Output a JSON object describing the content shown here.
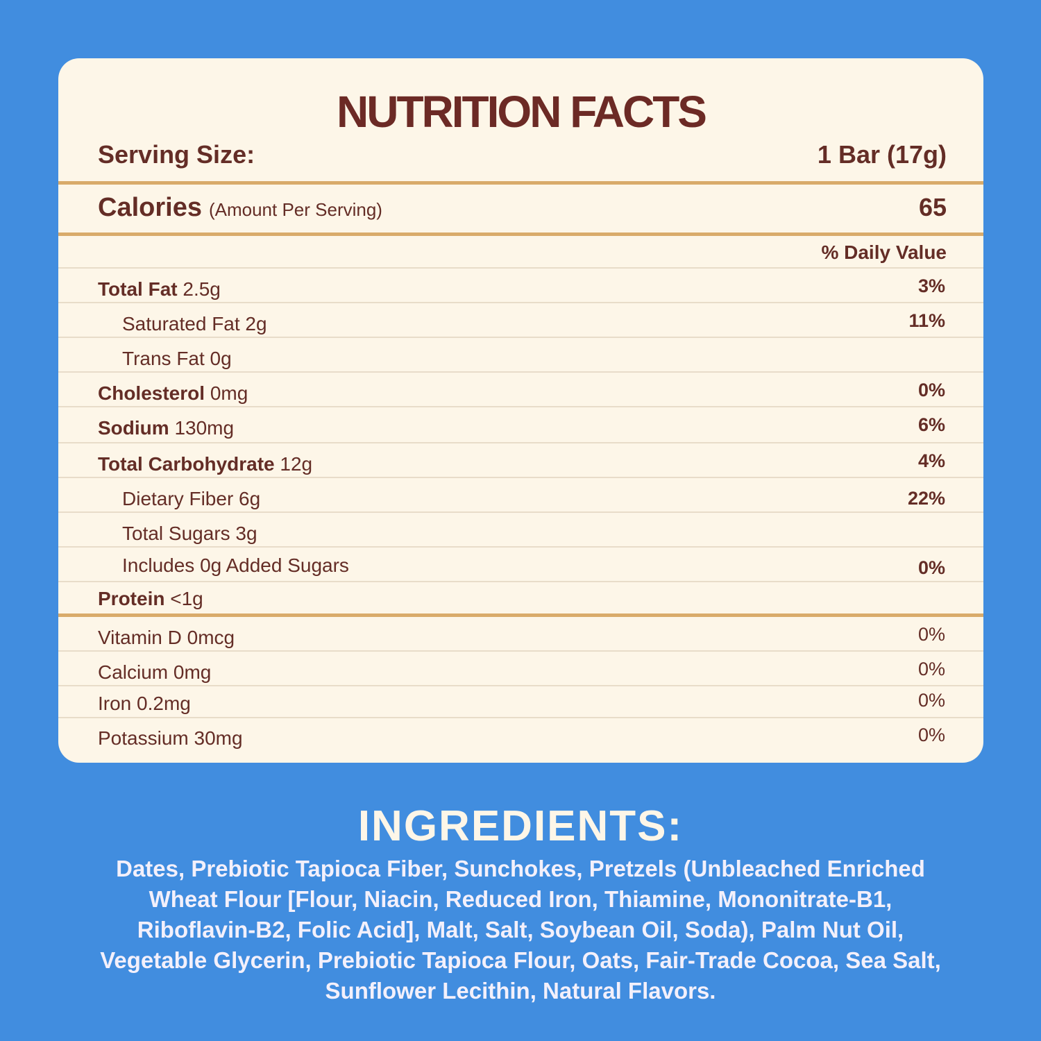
{
  "label": {
    "title": "NUTRITION FACTS",
    "serving_size_label": "Serving Size:",
    "serving_size_value": "1 Bar (17g)",
    "calories_label": "Calories",
    "calories_note": "(Amount Per Serving)",
    "calories_value": "65",
    "daily_value_header": "% Daily Value",
    "nutrients": [
      {
        "name": "Total Fat",
        "amount": "2.5g",
        "dv": "3%"
      },
      {
        "name": "Saturated Fat 2g",
        "amount": "",
        "dv": "11%"
      },
      {
        "name": "Trans Fat 0g",
        "amount": "",
        "dv": ""
      },
      {
        "name": "Cholesterol",
        "amount": "0mg",
        "dv": "0%"
      },
      {
        "name": "Sodium",
        "amount": "130mg",
        "dv": "6%"
      },
      {
        "name": "Total Carbohydrate",
        "amount": "12g",
        "dv": "4%"
      },
      {
        "name": "Dietary Fiber 6g",
        "amount": "",
        "dv": "22%"
      },
      {
        "name": "Total Sugars 3g",
        "amount": "",
        "dv": ""
      },
      {
        "name": "Includes 0g Added Sugars",
        "amount": "",
        "dv": "0%"
      },
      {
        "name": "Protein",
        "amount": "<1g",
        "dv": ""
      }
    ],
    "vitamins": [
      {
        "name": "Vitamin D 0mcg",
        "dv": "0%"
      },
      {
        "name": "Calcium 0mg",
        "dv": "0%"
      },
      {
        "name": "Iron 0.2mg",
        "dv": "0%"
      },
      {
        "name": "Potassium 30mg",
        "dv": "0%"
      }
    ]
  },
  "ingredients": {
    "title": "INGREDIENTS:",
    "text": "Dates, Prebiotic Tapioca Fiber, Sunchokes, Pretzels (Unbleached Enriched Wheat Flour [Flour, Niacin, Reduced Iron, Thiamine, Mononitrate-B1, Riboflavin-B2, Folic Acid], Malt, Salt, Soybean Oil, Soda), Palm Nut Oil, Vegetable Glycerin, Prebiotic Tapioca Flour,  Oats, Fair-Trade Cocoa, Sea Salt, Sunflower Lecithin, Natural Flavors."
  },
  "colors": {
    "background": "#418ddf",
    "card": "#fdf6e8",
    "text_brown": "#642d26",
    "rule_gold": "#d9ab6a"
  }
}
